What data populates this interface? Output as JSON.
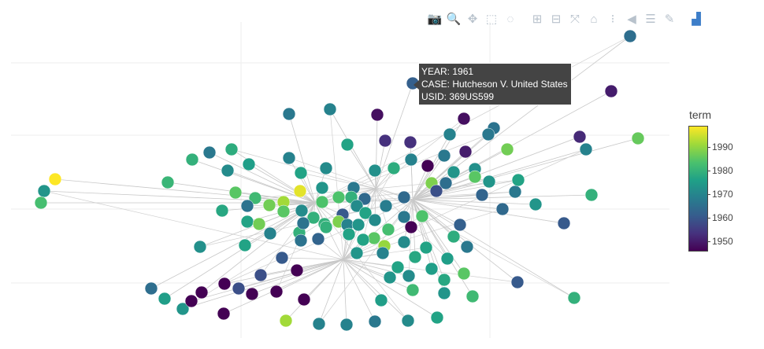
{
  "modebar": {
    "buttons": [
      {
        "name": "download-plot-icon",
        "glyph": "📷"
      },
      {
        "name": "zoom-icon",
        "glyph": "🔍"
      },
      {
        "name": "pan-icon",
        "glyph": "✥"
      },
      {
        "name": "box-select-icon",
        "glyph": "⬚"
      },
      {
        "name": "lasso-select-icon",
        "glyph": "◌"
      },
      {
        "name": "zoom-in-icon",
        "glyph": "⊞"
      },
      {
        "name": "zoom-out-icon",
        "glyph": "⊟"
      },
      {
        "name": "autoscale-icon",
        "glyph": "⤧"
      },
      {
        "name": "reset-axes-icon",
        "glyph": "⌂"
      },
      {
        "name": "toggle-spike-lines-icon",
        "glyph": "⁝"
      },
      {
        "name": "hover-closest-icon",
        "glyph": "◀"
      },
      {
        "name": "hover-compare-icon",
        "glyph": "☰"
      },
      {
        "name": "edit-chart-icon",
        "glyph": "✎"
      },
      {
        "name": "plotly-logo-icon",
        "glyph": "▟"
      }
    ]
  },
  "tooltip": {
    "line1": "YEAR: 1961",
    "line2": "CASE: Hutcheson V. United States",
    "line3": "USID: 369US599"
  },
  "chart_data": {
    "type": "scatter",
    "description_shown": "network graph of cases",
    "colorbar": {
      "title": "term",
      "ticks": [
        "1990",
        "1980",
        "1970",
        "1960",
        "1950"
      ],
      "range": [
        1946,
        1996
      ],
      "colorscale": "viridis"
    },
    "grid": true,
    "hubs": [
      [
        400,
        258
      ],
      [
        436,
        330
      ],
      [
        477,
        240
      ],
      [
        524,
        254
      ]
    ],
    "nodes": [
      [
        800,
        46,
        1964
      ],
      [
        524,
        106,
        1961
      ],
      [
        776,
        116,
        1950
      ],
      [
        419,
        139,
        1968
      ],
      [
        367,
        145,
        1966
      ],
      [
        479,
        146,
        1948
      ],
      [
        589,
        151,
        1948
      ],
      [
        627,
        163,
        1965
      ],
      [
        571,
        171,
        1968
      ],
      [
        736,
        174,
        1952
      ],
      [
        489,
        179,
        1953
      ],
      [
        521,
        181,
        1953
      ],
      [
        620,
        171,
        1966
      ],
      [
        441,
        184,
        1975
      ],
      [
        810,
        176,
        1984
      ],
      [
        744,
        190,
        1968
      ],
      [
        644,
        190,
        1985
      ],
      [
        591,
        193,
        1950
      ],
      [
        294,
        190,
        1977
      ],
      [
        266,
        194,
        1966
      ],
      [
        244,
        203,
        1978
      ],
      [
        367,
        201,
        1968
      ],
      [
        316,
        209,
        1974
      ],
      [
        289,
        217,
        1970
      ],
      [
        522,
        203,
        1968
      ],
      [
        564,
        198,
        1966
      ],
      [
        543,
        211,
        1946
      ],
      [
        500,
        214,
        1977
      ],
      [
        476,
        217,
        1971
      ],
      [
        414,
        214,
        1970
      ],
      [
        382,
        220,
        1975
      ],
      [
        576,
        219,
        1972
      ],
      [
        603,
        215,
        1971
      ],
      [
        603,
        225,
        1983
      ],
      [
        621,
        231,
        1972
      ],
      [
        566,
        233,
        1964
      ],
      [
        658,
        229,
        1975
      ],
      [
        213,
        232,
        1979
      ],
      [
        70,
        228,
        1996
      ],
      [
        56,
        243,
        1972
      ],
      [
        52,
        258,
        1981
      ],
      [
        299,
        245,
        1983
      ],
      [
        324,
        252,
        1980
      ],
      [
        381,
        243,
        1994
      ],
      [
        360,
        257,
        1989
      ],
      [
        342,
        261,
        1985
      ],
      [
        314,
        262,
        1965
      ],
      [
        282,
        268,
        1976
      ],
      [
        449,
        239,
        1966
      ],
      [
        409,
        239,
        1972
      ],
      [
        430,
        251,
        1982
      ],
      [
        446,
        251,
        1978
      ],
      [
        463,
        253,
        1963
      ],
      [
        409,
        257,
        1982
      ],
      [
        548,
        233,
        1986
      ],
      [
        554,
        243,
        1958
      ],
      [
        513,
        251,
        1963
      ],
      [
        490,
        262,
        1967
      ],
      [
        453,
        262,
        1970
      ],
      [
        612,
        248,
        1962
      ],
      [
        654,
        244,
        1966
      ],
      [
        751,
        248,
        1978
      ],
      [
        680,
        260,
        1972
      ],
      [
        638,
        266,
        1963
      ],
      [
        314,
        282,
        1975
      ],
      [
        329,
        285,
        1985
      ],
      [
        360,
        269,
        1983
      ],
      [
        383,
        268,
        1970
      ],
      [
        398,
        277,
        1978
      ],
      [
        435,
        273,
        1960
      ],
      [
        464,
        271,
        1975
      ],
      [
        412,
        285,
        1978
      ],
      [
        430,
        282,
        1986
      ],
      [
        441,
        286,
        1968
      ],
      [
        455,
        286,
        1972
      ],
      [
        536,
        275,
        1982
      ],
      [
        513,
        276,
        1966
      ],
      [
        476,
        280,
        1970
      ],
      [
        493,
        292,
        1981
      ],
      [
        522,
        289,
        1946
      ],
      [
        584,
        286,
        1961
      ],
      [
        716,
        284,
        1960
      ],
      [
        343,
        297,
        1968
      ],
      [
        380,
        296,
        1978
      ],
      [
        385,
        284,
        1965
      ],
      [
        404,
        304,
        1962
      ],
      [
        414,
        289,
        1978
      ],
      [
        443,
        298,
        1975
      ],
      [
        475,
        303,
        1983
      ],
      [
        488,
        313,
        1988
      ],
      [
        461,
        305,
        1975
      ],
      [
        513,
        308,
        1970
      ],
      [
        576,
        301,
        1977
      ],
      [
        254,
        314,
        1971
      ],
      [
        311,
        312,
        1975
      ],
      [
        358,
        328,
        1960
      ],
      [
        382,
        306,
        1965
      ],
      [
        453,
        322,
        1972
      ],
      [
        486,
        322,
        1968
      ],
      [
        541,
        315,
        1975
      ],
      [
        593,
        314,
        1966
      ],
      [
        527,
        327,
        1976
      ],
      [
        568,
        329,
        1974
      ],
      [
        505,
        340,
        1975
      ],
      [
        548,
        342,
        1974
      ],
      [
        519,
        351,
        1970
      ],
      [
        495,
        353,
        1972
      ],
      [
        589,
        348,
        1983
      ],
      [
        331,
        350,
        1958
      ],
      [
        377,
        344,
        1946
      ],
      [
        564,
        356,
        1976
      ],
      [
        657,
        359,
        1960
      ],
      [
        192,
        367,
        1964
      ],
      [
        209,
        380,
        1974
      ],
      [
        232,
        393,
        1972
      ],
      [
        243,
        383,
        1946
      ],
      [
        256,
        372,
        1946
      ],
      [
        285,
        361,
        1946
      ],
      [
        303,
        367,
        1960
      ],
      [
        320,
        374,
        1946
      ],
      [
        351,
        371,
        1946
      ],
      [
        386,
        381,
        1946
      ],
      [
        484,
        382,
        1974
      ],
      [
        524,
        369,
        1980
      ],
      [
        564,
        373,
        1972
      ],
      [
        600,
        377,
        1980
      ],
      [
        729,
        379,
        1978
      ],
      [
        284,
        399,
        1946
      ],
      [
        363,
        408,
        1989
      ],
      [
        405,
        412,
        1968
      ],
      [
        440,
        413,
        1968
      ],
      [
        476,
        409,
        1966
      ],
      [
        518,
        408,
        1970
      ],
      [
        555,
        404,
        1975
      ],
      [
        303,
        367,
        1958
      ]
    ]
  }
}
